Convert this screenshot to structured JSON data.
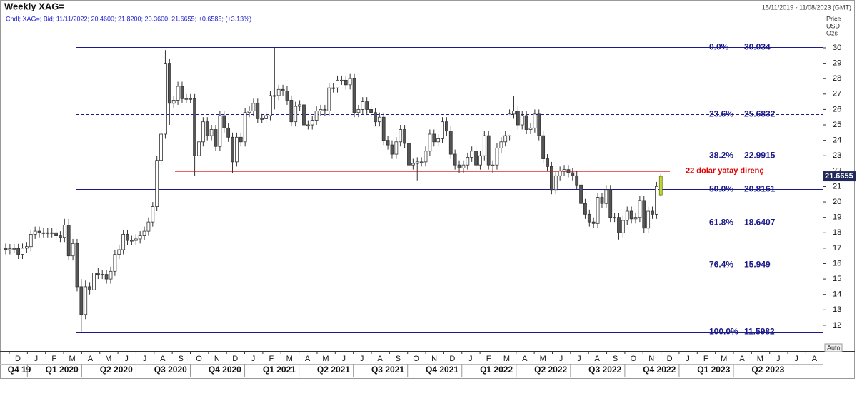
{
  "chart_data": {
    "type": "candlestick",
    "title": "Weekly XAG=",
    "date_range": "15/11/2019 - 11/08/2023 (GMT)",
    "subtitle": "Cndl; XAG=; Bid; 11/11/2022; 20.4600; 21.8200; 20.3600; 21.6655; +0.6585; (+3.13%)",
    "y_axis_label": [
      "Price",
      "USD",
      "Ozs"
    ],
    "y_scale_mode": "Auto",
    "ylim": [
      10.33,
      31.48
    ],
    "yticks": [
      12,
      13,
      14,
      15,
      16,
      17,
      18,
      19,
      20,
      21,
      22,
      23,
      24,
      25,
      26,
      27,
      28,
      29,
      30
    ],
    "months": [
      "D",
      "J",
      "F",
      "M",
      "A",
      "M",
      "J",
      "J",
      "A",
      "S",
      "O",
      "N",
      "D",
      "J",
      "F",
      "M",
      "A",
      "M",
      "J",
      "J",
      "A",
      "S",
      "O",
      "N",
      "D",
      "J",
      "F",
      "M",
      "A",
      "M",
      "J",
      "J",
      "A",
      "S",
      "O",
      "N",
      "D",
      "J",
      "F",
      "M",
      "A",
      "M",
      "J",
      "J",
      "A"
    ],
    "quarters": [
      "Q4 19",
      "Q1 2020",
      "Q2 2020",
      "Q3 2020",
      "Q4 2020",
      "Q1 2021",
      "Q2 2021",
      "Q3 2021",
      "Q4 2021",
      "Q1 2022",
      "Q2 2022",
      "Q3 2022",
      "Q4 2022",
      "Q1 2023",
      "Q2 2023"
    ],
    "up_color": "#ffffff",
    "down_color": "#555555",
    "outline_color": "#333333",
    "highlight_color": "#c5d63d",
    "last_price_color": "#1f2a5a",
    "candles": {
      "open": [
        17.0,
        16.9,
        16.97,
        16.98,
        16.6,
        17.0,
        17.1,
        17.9,
        18.1,
        18.0,
        18.0,
        18.0,
        18.0,
        17.8,
        17.7,
        18.5,
        16.5,
        17.3,
        14.5,
        12.7,
        14.5,
        14.3,
        15.4,
        15.3,
        15.3,
        15.0,
        15.5,
        16.6,
        16.9,
        17.9,
        17.5,
        17.5,
        17.6,
        17.8,
        18.1,
        18.7,
        19.7,
        22.7,
        24.4,
        29.0,
        26.4,
        26.6,
        27.5,
        26.7,
        26.7,
        26.7,
        23.0,
        23.9,
        25.2,
        24.3,
        24.7,
        23.6,
        25.6,
        24.8,
        24.2,
        22.6,
        24.2,
        23.9,
        25.8,
        25.9,
        26.4,
        25.4,
        25.4,
        25.6,
        26.9,
        26.9,
        27.3,
        27.2,
        26.6,
        25.2,
        26.2,
        26.3,
        25.0,
        25.0,
        25.3,
        25.9,
        26.0,
        25.9,
        27.4,
        27.4,
        27.9,
        27.9,
        27.6,
        28.0,
        25.8,
        26.0,
        26.5,
        26.0,
        25.8,
        25.2,
        25.5,
        24.0,
        23.7,
        23.1,
        23.9,
        24.7,
        23.8,
        22.4,
        22.5,
        22.6,
        22.6,
        23.3,
        24.4,
        23.9,
        24.1,
        25.2,
        24.6,
        23.1,
        22.4,
        22.2,
        22.4,
        22.9,
        23.3,
        22.4,
        23.0,
        24.3,
        22.4,
        22.4,
        23.5,
        23.9,
        24.3,
        25.7,
        25.9,
        25.0,
        25.6,
        24.7,
        24.8,
        25.7,
        24.3,
        22.8,
        22.3,
        20.8,
        21.7,
        22.0,
        22.1,
        21.9,
        21.7,
        21.1,
        19.9,
        19.2,
        18.7,
        18.6,
        20.3,
        19.9,
        20.8,
        19.0,
        19.0,
        18.0,
        18.8,
        19.4,
        18.9,
        19.0,
        20.1,
        18.3,
        19.4,
        19.2,
        20.46
      ],
      "high": [
        17.3,
        17.27,
        17.28,
        17.28,
        17.3,
        17.4,
        18.2,
        18.4,
        18.4,
        18.3,
        18.3,
        18.3,
        18.3,
        18.1,
        18.9,
        18.9,
        17.6,
        17.6,
        15.0,
        14.9,
        14.8,
        15.7,
        15.7,
        15.6,
        15.6,
        15.8,
        16.9,
        17.2,
        18.2,
        18.2,
        17.8,
        17.9,
        18.1,
        18.4,
        19.0,
        20.0,
        23.0,
        24.7,
        29.85,
        29.3,
        26.9,
        27.8,
        27.8,
        27.0,
        27.0,
        27.0,
        24.2,
        25.5,
        25.5,
        25.0,
        25.0,
        25.9,
        25.9,
        25.1,
        24.5,
        24.5,
        24.5,
        26.1,
        26.2,
        26.7,
        26.7,
        25.7,
        25.9,
        27.2,
        30.03,
        27.6,
        27.6,
        27.5,
        26.9,
        26.5,
        26.6,
        26.6,
        25.3,
        25.6,
        26.2,
        26.3,
        26.3,
        27.7,
        27.7,
        28.2,
        28.2,
        28.2,
        28.3,
        28.3,
        26.3,
        26.8,
        26.8,
        26.3,
        26.1,
        25.8,
        25.8,
        24.3,
        24.0,
        24.2,
        25.0,
        25.0,
        24.1,
        22.8,
        22.9,
        22.9,
        23.6,
        24.7,
        24.7,
        24.4,
        25.5,
        25.5,
        24.9,
        23.4,
        22.7,
        22.7,
        23.2,
        23.6,
        23.6,
        23.3,
        24.6,
        24.6,
        22.7,
        23.8,
        24.2,
        24.6,
        26.0,
        26.9,
        26.2,
        25.9,
        25.9,
        25.1,
        26.0,
        26.0,
        24.6,
        23.1,
        22.6,
        22.0,
        22.3,
        22.4,
        22.4,
        22.2,
        22.0,
        21.4,
        20.2,
        19.5,
        19.0,
        20.6,
        20.6,
        21.1,
        21.1,
        19.3,
        19.3,
        19.1,
        19.7,
        19.7,
        19.3,
        20.4,
        20.4,
        19.7,
        19.7,
        21.3,
        21.82
      ],
      "low": [
        16.6,
        16.6,
        16.67,
        16.3,
        16.3,
        16.7,
        16.8,
        17.6,
        17.7,
        17.7,
        17.7,
        17.7,
        17.5,
        17.4,
        17.4,
        16.2,
        16.2,
        14.2,
        11.5982,
        12.4,
        14.0,
        14.0,
        15.0,
        15.0,
        14.7,
        14.7,
        15.2,
        16.3,
        16.6,
        17.2,
        17.2,
        17.2,
        17.3,
        17.5,
        17.8,
        18.4,
        19.4,
        22.4,
        24.1,
        25.0,
        26.1,
        26.3,
        26.4,
        26.4,
        26.4,
        21.68,
        22.7,
        23.6,
        24.0,
        24.0,
        23.3,
        23.3,
        24.5,
        23.9,
        21.9,
        22.3,
        23.6,
        23.6,
        25.5,
        25.6,
        25.1,
        25.1,
        25.1,
        25.3,
        26.0,
        26.6,
        26.9,
        26.3,
        24.9,
        24.9,
        25.9,
        24.7,
        24.7,
        24.7,
        25.0,
        25.6,
        25.6,
        25.6,
        27.1,
        27.1,
        27.6,
        27.3,
        27.3,
        25.5,
        25.5,
        25.7,
        25.7,
        25.5,
        24.9,
        24.9,
        23.7,
        23.4,
        22.8,
        22.8,
        23.6,
        23.5,
        22.1,
        22.1,
        21.4,
        22.3,
        22.3,
        23.0,
        23.6,
        23.6,
        23.8,
        24.3,
        22.8,
        22.1,
        21.9,
        21.9,
        22.1,
        22.6,
        22.1,
        22.1,
        22.7,
        22.1,
        21.9,
        22.1,
        23.2,
        23.6,
        24.0,
        25.4,
        24.7,
        24.7,
        24.4,
        24.4,
        24.5,
        24.0,
        22.5,
        22.0,
        20.5,
        20.5,
        21.4,
        21.7,
        21.6,
        21.4,
        20.8,
        19.6,
        18.9,
        18.4,
        18.3,
        18.3,
        19.6,
        19.6,
        18.7,
        18.7,
        17.56,
        17.7,
        18.5,
        18.6,
        18.6,
        18.7,
        18.0,
        18.0,
        18.9,
        18.9,
        20.36
      ],
      "close": [
        16.9,
        16.97,
        16.98,
        16.6,
        17.0,
        17.1,
        17.9,
        18.1,
        18.0,
        18.0,
        18.0,
        18.0,
        17.8,
        17.7,
        18.5,
        16.5,
        17.3,
        14.5,
        12.7,
        14.5,
        14.3,
        15.4,
        15.3,
        15.3,
        15.0,
        15.5,
        16.6,
        16.9,
        17.9,
        17.5,
        17.5,
        17.6,
        17.8,
        18.1,
        18.7,
        19.7,
        22.7,
        24.4,
        29.0,
        26.4,
        26.6,
        27.5,
        26.7,
        26.7,
        26.7,
        23.0,
        23.9,
        25.2,
        24.3,
        24.7,
        23.6,
        25.6,
        24.8,
        24.2,
        22.6,
        24.2,
        23.9,
        25.8,
        25.9,
        26.4,
        25.4,
        25.4,
        25.6,
        26.9,
        26.9,
        27.3,
        27.2,
        26.6,
        25.2,
        26.2,
        26.3,
        25.0,
        25.0,
        25.3,
        25.9,
        26.0,
        25.9,
        27.4,
        27.4,
        27.9,
        27.9,
        27.6,
        28.0,
        25.8,
        26.0,
        26.5,
        26.0,
        25.8,
        25.2,
        25.5,
        24.0,
        23.7,
        23.1,
        23.9,
        24.7,
        23.8,
        22.4,
        22.5,
        22.6,
        22.6,
        23.3,
        24.4,
        23.9,
        24.1,
        25.2,
        24.6,
        23.1,
        22.4,
        22.2,
        22.4,
        22.9,
        23.3,
        22.4,
        23.0,
        24.3,
        22.4,
        22.4,
        23.5,
        23.9,
        24.3,
        25.7,
        25.9,
        25.0,
        25.6,
        24.7,
        24.8,
        25.7,
        24.3,
        22.8,
        22.3,
        20.8,
        21.7,
        22.0,
        22.1,
        21.9,
        21.7,
        21.1,
        19.9,
        19.2,
        18.7,
        18.6,
        20.3,
        19.9,
        20.8,
        19.0,
        19.0,
        18.0,
        18.8,
        19.4,
        18.9,
        19.0,
        20.1,
        18.3,
        19.4,
        19.2,
        21.007,
        21.6655
      ]
    },
    "fib_color": "#1a1a8c",
    "fib_levels": [
      {
        "label": "0.0%",
        "value": 30.034,
        "dashed": false
      },
      {
        "label": "23.6%",
        "value": 25.6832,
        "dashed": true
      },
      {
        "label": "38.2%",
        "value": 22.9915,
        "dashed": true
      },
      {
        "label": "50.0%",
        "value": 20.8161,
        "dashed": false
      },
      {
        "label": "61.8%",
        "value": 18.6407,
        "dashed": true
      },
      {
        "label": "76.4%",
        "value": 15.949,
        "dashed": true
      },
      {
        "label": "100.0%",
        "value": 11.5982,
        "dashed": false
      }
    ],
    "resistance": {
      "value": 22,
      "label": "22 dolar yatay direnç",
      "color": "#e00000"
    }
  }
}
